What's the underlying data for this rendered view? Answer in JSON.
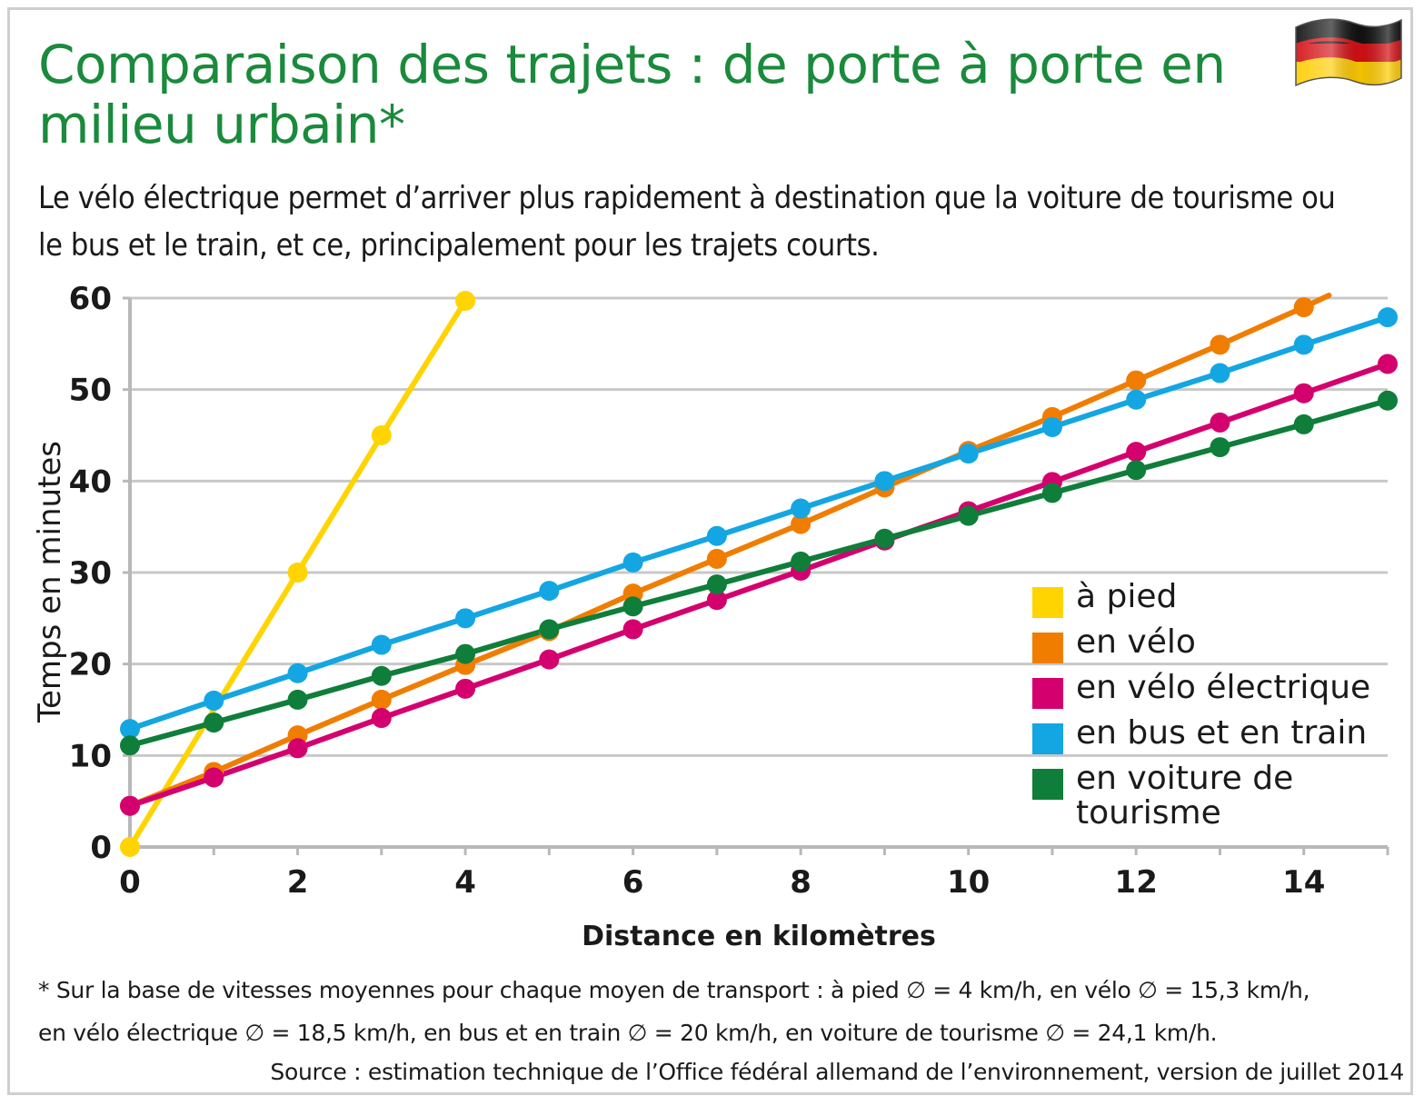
{
  "header": {
    "title": "Comparaison des trajets : de porte à porte en milieu urbain*",
    "subtitle": "Le vélo électrique permet d’arriver plus rapidement à destination que la voiture de tourisme ou le bus et le train, et ce, principalement pour les trajets courts.",
    "flag_icon": "germany-flag-icon"
  },
  "chart_data": {
    "type": "line",
    "title": "Comparaison des trajets : de porte à porte en milieu urbain*",
    "xlabel": "Distance en kilomètres",
    "ylabel": "Temps en minutes",
    "xlim": [
      0,
      15
    ],
    "ylim": [
      0,
      60
    ],
    "xticks": [
      0,
      2,
      4,
      6,
      8,
      10,
      12,
      14
    ],
    "yticks": [
      0,
      10,
      20,
      30,
      40,
      50,
      60
    ],
    "grid": "horizontal",
    "legend_position": "right",
    "series": [
      {
        "name": "à pied",
        "color": "#ffd400",
        "x": [
          0,
          2,
          3,
          4
        ],
        "y": [
          0,
          30,
          45,
          59.7
        ]
      },
      {
        "name": "en vélo",
        "color": "#f07d00",
        "x": [
          0,
          1,
          2,
          3,
          4,
          5,
          6,
          7,
          8,
          9,
          10,
          11,
          12,
          13,
          14
        ],
        "y": [
          4.5,
          8.2,
          12.2,
          16.1,
          19.9,
          23.6,
          27.7,
          31.5,
          35.3,
          39.3,
          43.3,
          47,
          51,
          54.9,
          59
        ],
        "extends_to_x": 14.3,
        "extends_to_y": 60.3
      },
      {
        "name": "en vélo électrique",
        "color": "#d4006e",
        "x": [
          0,
          1,
          2,
          3,
          4,
          5,
          6,
          7,
          8,
          9,
          10,
          11,
          12,
          13,
          14,
          15
        ],
        "y": [
          4.5,
          7.6,
          10.8,
          14.1,
          17.3,
          20.5,
          23.8,
          27,
          30.2,
          33.5,
          36.7,
          39.9,
          43.2,
          46.4,
          49.6,
          52.8
        ]
      },
      {
        "name": "en bus et en train",
        "color": "#13a6e3",
        "x": [
          0,
          1,
          2,
          3,
          4,
          5,
          6,
          7,
          8,
          9,
          10,
          11,
          12,
          13,
          14,
          15
        ],
        "y": [
          12.9,
          16,
          19,
          22.1,
          25,
          28,
          31.1,
          34,
          37,
          40,
          43,
          45.9,
          48.9,
          51.8,
          54.9,
          57.9
        ]
      },
      {
        "name": "en voiture de tourisme",
        "color": "#0f7e3a",
        "x": [
          0,
          1,
          2,
          3,
          4,
          5,
          6,
          7,
          8,
          9,
          10,
          11,
          12,
          13,
          14,
          15
        ],
        "y": [
          11.1,
          13.6,
          16.1,
          18.7,
          21.1,
          23.8,
          26.3,
          28.7,
          31.2,
          33.7,
          36.2,
          38.7,
          41.2,
          43.7,
          46.2,
          48.8
        ]
      }
    ]
  },
  "footnote": {
    "line1": "* Sur la base de vitesses moyennes pour chaque moyen de transport : à pied ∅ = 4 km/h, en vélo ∅ = 15,3 km/h,",
    "line2": "en vélo électrique ∅ = 18,5 km/h, en bus et en train ∅ = 20 km/h, en voiture de tourisme ∅ = 24,1 km/h.",
    "source": "Source : estimation technique de l’Office fédéral allemand de l’environnement, version de juillet 2014"
  }
}
